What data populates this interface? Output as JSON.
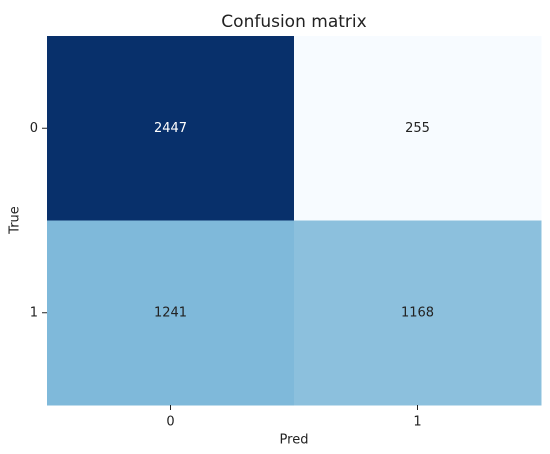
{
  "chart_data": {
    "type": "heatmap",
    "title": "Confusion matrix",
    "x_label": "Pred",
    "y_label": "True",
    "x_categories": [
      "0",
      "1"
    ],
    "y_categories": [
      "0",
      "1"
    ],
    "values": [
      [
        2447,
        255
      ],
      [
        1241,
        1168
      ]
    ],
    "colors": [
      [
        "#08306b",
        "#f7fbff"
      ],
      [
        "#7fb9da",
        "#8cc0dd"
      ]
    ],
    "text_colors": [
      [
        "#ffffff",
        "#222222"
      ],
      [
        "#222222",
        "#222222"
      ]
    ]
  }
}
